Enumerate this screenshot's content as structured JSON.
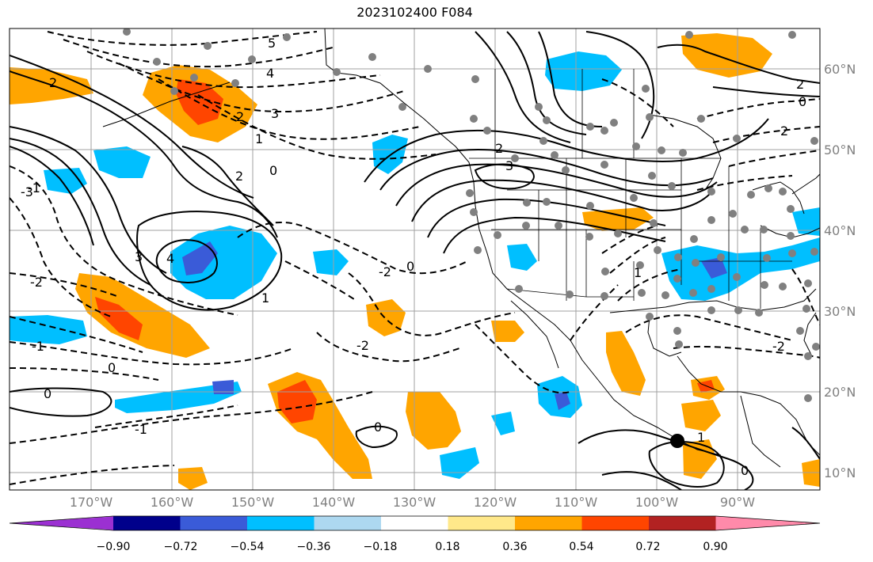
{
  "title": "2023102400 F084",
  "latitude_labels": [
    "60°N",
    "50°N",
    "40°N",
    "30°N",
    "20°N",
    "10°N"
  ],
  "longitude_labels": [
    "170°W",
    "160°W",
    "150°W",
    "140°W",
    "130°W",
    "120°W",
    "110°W",
    "100°W",
    "90°W"
  ],
  "colorbar": {
    "tick_labels": [
      "−0.90",
      "−0.72",
      "−0.54",
      "−0.36",
      "−0.18",
      "0.18",
      "0.36",
      "0.54",
      "0.72",
      "0.90"
    ],
    "colors": [
      "#9b30d2",
      "#00008b",
      "#3a5bd8",
      "#00bfff",
      "#add8f0",
      "#ffffff",
      "#ffe88a",
      "#ffa500",
      "#ff4500",
      "#b22222",
      "#ff8aaa"
    ]
  },
  "contour_labels": [
    "5",
    "4",
    "3",
    "2",
    "1",
    "0",
    "-1",
    "-2",
    "-3",
    "4",
    "3",
    "2",
    "1",
    "0",
    "-1",
    "-2",
    "2",
    "3",
    "2",
    "0",
    "2",
    "0",
    "-2",
    "1",
    "0",
    "-2",
    "-1",
    "0",
    "2",
    "0",
    "1"
  ],
  "station_marker_color": "#808080",
  "highlight_marker_color": "#000000"
}
